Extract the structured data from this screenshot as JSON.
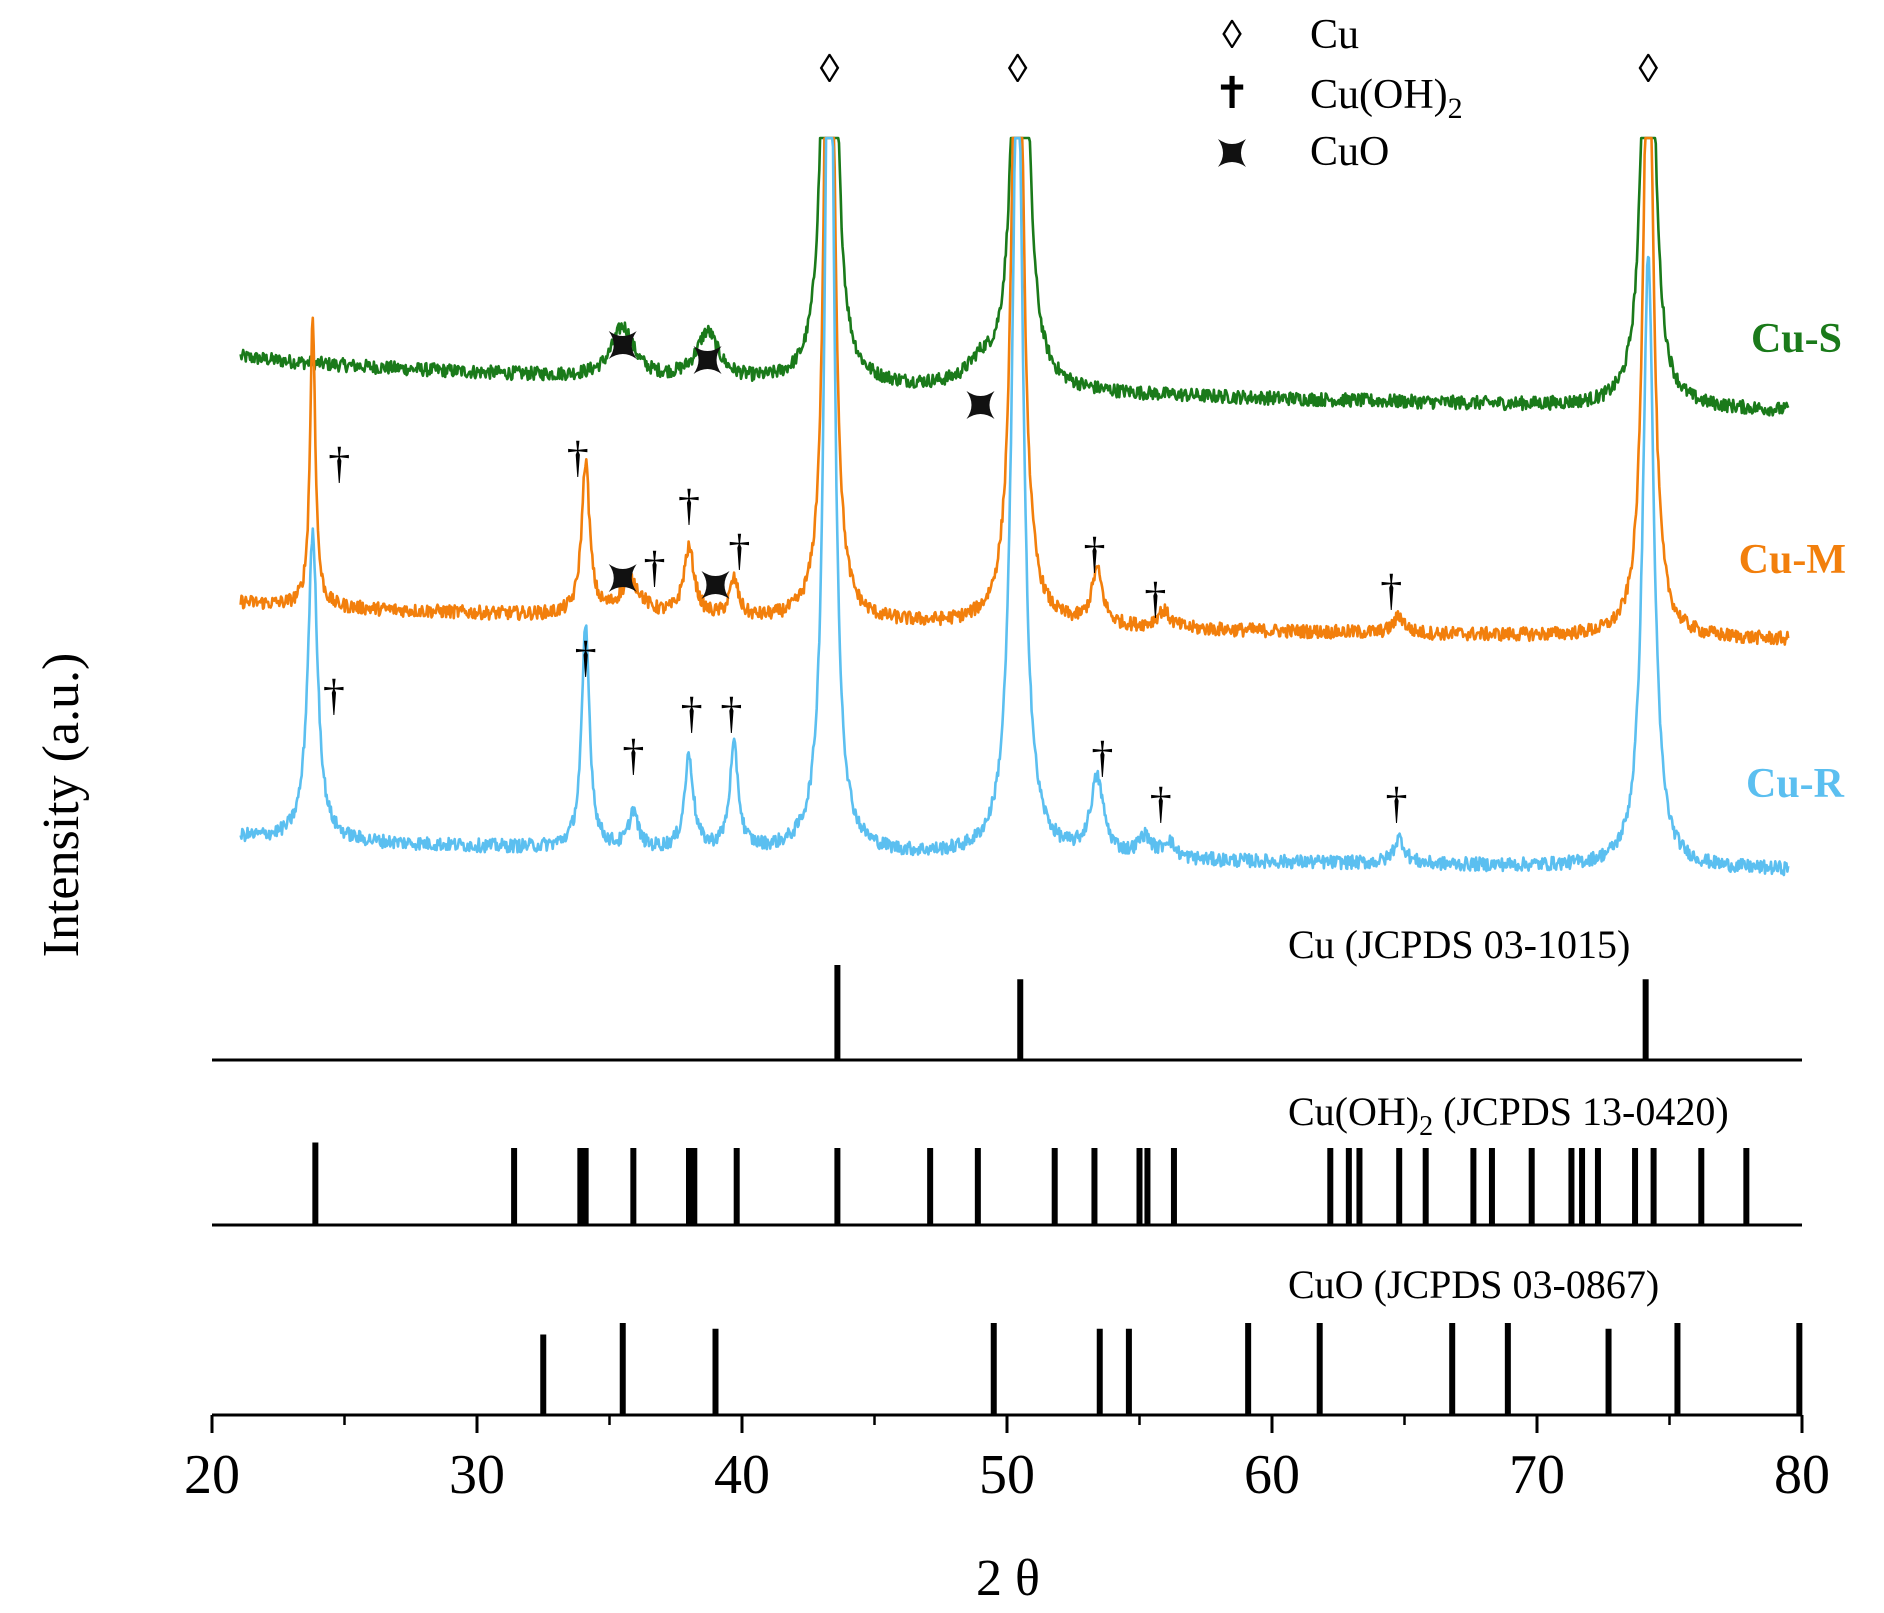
{
  "chart_data": {
    "type": "line",
    "title": "",
    "xlabel": "2 θ",
    "ylabel": "Intensity (a.u.)",
    "xlim": [
      20,
      80
    ],
    "x_ticks": [
      20,
      30,
      40,
      50,
      60,
      70,
      80
    ],
    "legend": {
      "placement": "top-center",
      "entries": [
        {
          "marker": "◊",
          "marker_name": "diamond",
          "label": "Cu",
          "sub": ""
        },
        {
          "marker": "✝",
          "marker_name": "dagger",
          "label": "Cu(OH)",
          "sub": "2"
        },
        {
          "marker": "✦",
          "marker_name": "cross-star",
          "label": "CuO",
          "sub": ""
        }
      ]
    },
    "series": [
      {
        "name": "Cu-S",
        "color": "#1a7a1a",
        "baseline_start": 0.5,
        "baseline_end": 0.14,
        "noise": 0.04,
        "peaks": [
          {
            "x": 35.5,
            "h": 0.3,
            "w": 0.5
          },
          {
            "x": 38.7,
            "h": 0.28,
            "w": 0.5
          },
          {
            "x": 43.3,
            "h": 6.0,
            "w": 0.2
          },
          {
            "x": 49.0,
            "h": 0.12,
            "w": 0.6
          },
          {
            "x": 50.5,
            "h": 4.5,
            "w": 0.25
          },
          {
            "x": 74.2,
            "h": 3.5,
            "w": 0.25
          }
        ]
      },
      {
        "name": "Cu-M",
        "color": "#f27f0c",
        "baseline_start": 0.32,
        "baseline_end": 0.07,
        "noise": 0.04,
        "peaks": [
          {
            "x": 23.8,
            "h": 1.7,
            "w": 0.12
          },
          {
            "x": 34.1,
            "h": 0.9,
            "w": 0.18
          },
          {
            "x": 35.8,
            "h": 0.2,
            "w": 0.5
          },
          {
            "x": 38.0,
            "h": 0.4,
            "w": 0.25
          },
          {
            "x": 39.7,
            "h": 0.22,
            "w": 0.2
          },
          {
            "x": 43.3,
            "h": 6.0,
            "w": 0.18
          },
          {
            "x": 50.4,
            "h": 5.0,
            "w": 0.22
          },
          {
            "x": 53.4,
            "h": 0.32,
            "w": 0.25
          },
          {
            "x": 55.9,
            "h": 0.1,
            "w": 0.3
          },
          {
            "x": 64.8,
            "h": 0.1,
            "w": 0.25
          },
          {
            "x": 74.2,
            "h": 4.0,
            "w": 0.22
          }
        ]
      },
      {
        "name": "Cu-R",
        "color": "#5bbff0",
        "baseline_start": 0.22,
        "baseline_end": 0.0,
        "noise": 0.04,
        "peaks": [
          {
            "x": 23.8,
            "h": 1.8,
            "w": 0.22
          },
          {
            "x": 34.1,
            "h": 1.3,
            "w": 0.18
          },
          {
            "x": 35.9,
            "h": 0.22,
            "w": 0.2
          },
          {
            "x": 38.0,
            "h": 0.55,
            "w": 0.2
          },
          {
            "x": 39.7,
            "h": 0.6,
            "w": 0.2
          },
          {
            "x": 43.3,
            "h": 6.0,
            "w": 0.2
          },
          {
            "x": 50.4,
            "h": 4.9,
            "w": 0.25
          },
          {
            "x": 53.4,
            "h": 0.45,
            "w": 0.3
          },
          {
            "x": 55.2,
            "h": 0.12,
            "w": 0.3
          },
          {
            "x": 56.1,
            "h": 0.1,
            "w": 0.25
          },
          {
            "x": 64.8,
            "h": 0.15,
            "w": 0.25
          },
          {
            "x": 74.2,
            "h": 3.6,
            "w": 0.25
          }
        ]
      }
    ],
    "peak_markers": [
      {
        "series": "Cu-S",
        "symbol": "◊",
        "x": 43.3
      },
      {
        "series": "Cu-S",
        "symbol": "◊",
        "x": 50.4
      },
      {
        "series": "Cu-S",
        "symbol": "◊",
        "x": 74.2
      },
      {
        "series": "Cu-S",
        "symbol": "✦",
        "x": 35.5
      },
      {
        "series": "Cu-S",
        "symbol": "✦",
        "x": 38.7
      },
      {
        "series": "Cu-S",
        "symbol": "✦",
        "x": 49.0
      },
      {
        "series": "Cu-M",
        "symbol": "†",
        "x": 24.8
      },
      {
        "series": "Cu-M",
        "symbol": "†",
        "x": 33.8
      },
      {
        "series": "Cu-M",
        "symbol": "†",
        "x": 38.0
      },
      {
        "series": "Cu-M",
        "symbol": "†",
        "x": 39.9
      },
      {
        "series": "Cu-M",
        "symbol": "†",
        "x": 36.7
      },
      {
        "series": "Cu-M",
        "symbol": "✦",
        "x": 35.5
      },
      {
        "series": "Cu-M",
        "symbol": "✦",
        "x": 39.0
      },
      {
        "series": "Cu-M",
        "symbol": "†",
        "x": 53.3
      },
      {
        "series": "Cu-M",
        "symbol": "†",
        "x": 55.6
      },
      {
        "series": "Cu-M",
        "symbol": "†",
        "x": 64.5
      },
      {
        "series": "Cu-R",
        "symbol": "†",
        "x": 24.6
      },
      {
        "series": "Cu-R",
        "symbol": "†",
        "x": 34.1
      },
      {
        "series": "Cu-R",
        "symbol": "†",
        "x": 35.9
      },
      {
        "series": "Cu-R",
        "symbol": "†",
        "x": 38.1
      },
      {
        "series": "Cu-R",
        "symbol": "†",
        "x": 39.6
      },
      {
        "series": "Cu-R",
        "symbol": "†",
        "x": 53.6
      },
      {
        "series": "Cu-R",
        "symbol": "†",
        "x": 55.8
      },
      {
        "series": "Cu-R",
        "symbol": "†",
        "x": 64.7
      }
    ],
    "references": [
      {
        "label": "Cu (JCPDS 03-1015)",
        "label_main": "Cu (JCPDS 03-1015)",
        "label_sub": "",
        "label_tail": "",
        "lines": [
          {
            "x": 43.6,
            "h": 1.0
          },
          {
            "x": 50.5,
            "h": 0.85
          },
          {
            "x": 74.1,
            "h": 0.85
          }
        ]
      },
      {
        "label": "Cu(OH)2 (JCPDS 13-0420)",
        "label_main": "Cu(OH)",
        "label_sub": "2",
        "label_tail": " (JCPDS 13-0420)",
        "lines": [
          {
            "x": 23.9,
            "h": 0.75
          },
          {
            "x": 31.4,
            "h": 0.7
          },
          {
            "x": 33.9,
            "h": 0.7
          },
          {
            "x": 34.1,
            "h": 0.7
          },
          {
            "x": 35.9,
            "h": 0.7
          },
          {
            "x": 38.0,
            "h": 0.7
          },
          {
            "x": 38.2,
            "h": 0.7
          },
          {
            "x": 39.8,
            "h": 0.7
          },
          {
            "x": 43.6,
            "h": 0.7
          },
          {
            "x": 47.1,
            "h": 0.7
          },
          {
            "x": 48.9,
            "h": 0.7
          },
          {
            "x": 51.8,
            "h": 0.7
          },
          {
            "x": 53.3,
            "h": 0.7
          },
          {
            "x": 55.0,
            "h": 0.7
          },
          {
            "x": 55.3,
            "h": 0.7
          },
          {
            "x": 56.3,
            "h": 0.7
          },
          {
            "x": 62.2,
            "h": 0.7
          },
          {
            "x": 62.9,
            "h": 0.7
          },
          {
            "x": 63.3,
            "h": 0.7
          },
          {
            "x": 64.8,
            "h": 0.7
          },
          {
            "x": 65.8,
            "h": 0.7
          },
          {
            "x": 67.6,
            "h": 0.7
          },
          {
            "x": 68.3,
            "h": 0.7
          },
          {
            "x": 69.8,
            "h": 0.7
          },
          {
            "x": 71.3,
            "h": 0.7
          },
          {
            "x": 71.7,
            "h": 0.7
          },
          {
            "x": 72.3,
            "h": 0.7
          },
          {
            "x": 73.7,
            "h": 0.7
          },
          {
            "x": 74.4,
            "h": 0.7
          },
          {
            "x": 76.2,
            "h": 0.7
          },
          {
            "x": 77.9,
            "h": 0.7
          }
        ]
      },
      {
        "label": "CuO (JCPDS 03-0867)",
        "label_main": "CuO (JCPDS 03-0867)",
        "label_sub": "",
        "label_tail": "",
        "lines": [
          {
            "x": 32.5,
            "h": 0.7
          },
          {
            "x": 35.5,
            "h": 0.8
          },
          {
            "x": 39.0,
            "h": 0.75
          },
          {
            "x": 49.5,
            "h": 0.8
          },
          {
            "x": 53.5,
            "h": 0.75
          },
          {
            "x": 54.6,
            "h": 0.75
          },
          {
            "x": 59.1,
            "h": 0.8
          },
          {
            "x": 61.8,
            "h": 0.8
          },
          {
            "x": 66.8,
            "h": 0.8
          },
          {
            "x": 68.9,
            "h": 0.8
          },
          {
            "x": 72.7,
            "h": 0.75
          },
          {
            "x": 75.3,
            "h": 0.8
          },
          {
            "x": 79.9,
            "h": 0.8
          }
        ]
      }
    ]
  }
}
